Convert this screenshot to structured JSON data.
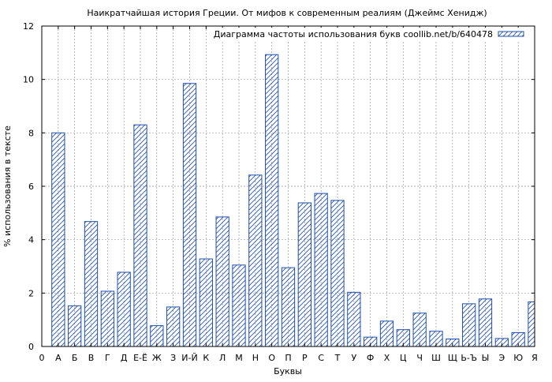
{
  "chart_data": {
    "type": "bar",
    "title": "Наикратчайшая история Греции. От мифов к современным реалиям (Джеймс Хенидж)",
    "xlabel": "Буквы",
    "ylabel": "% использования в тексте",
    "legend": {
      "label": "Диаграмма частоты использования букв coollib.net/b/640478",
      "placement": "top-right"
    },
    "x_tick_labels": [
      "0",
      "А",
      "Б",
      "В",
      "Г",
      "Д",
      "Е-Ё",
      "Ж",
      "З",
      "И-Й",
      "К",
      "Л",
      "М",
      "Н",
      "О",
      "П",
      "Р",
      "С",
      "Т",
      "У",
      "Ф",
      "Х",
      "Ц",
      "Ч",
      "Ш",
      "Щ",
      "Ь-Ъ",
      "Ы",
      "Э",
      "Ю",
      "Я"
    ],
    "categories": [
      "А",
      "Б",
      "В",
      "Г",
      "Д",
      "Е-Ё",
      "Ж",
      "З",
      "И-Й",
      "К",
      "Л",
      "М",
      "Н",
      "О",
      "П",
      "Р",
      "С",
      "Т",
      "У",
      "Ф",
      "Х",
      "Ц",
      "Ч",
      "Ш",
      "Щ",
      "Ь-Ъ",
      "Ы",
      "Э",
      "Ю",
      "Я"
    ],
    "values": [
      8.0,
      1.52,
      4.68,
      2.07,
      2.78,
      8.3,
      0.78,
      1.48,
      9.85,
      3.28,
      4.85,
      3.05,
      6.42,
      10.93,
      2.95,
      5.38,
      5.73,
      5.47,
      2.03,
      0.35,
      0.95,
      0.63,
      1.25,
      0.57,
      0.28,
      1.6,
      1.78,
      0.3,
      0.52,
      1.67
    ],
    "ylim": [
      0,
      12
    ],
    "y_ticks": [
      0,
      2,
      4,
      6,
      8,
      10,
      12
    ],
    "grid": true,
    "colors": {
      "bar_edge": "#1f4faa",
      "hatch": "#1f4faa",
      "grid": "#999999",
      "axis": "#000000"
    }
  }
}
